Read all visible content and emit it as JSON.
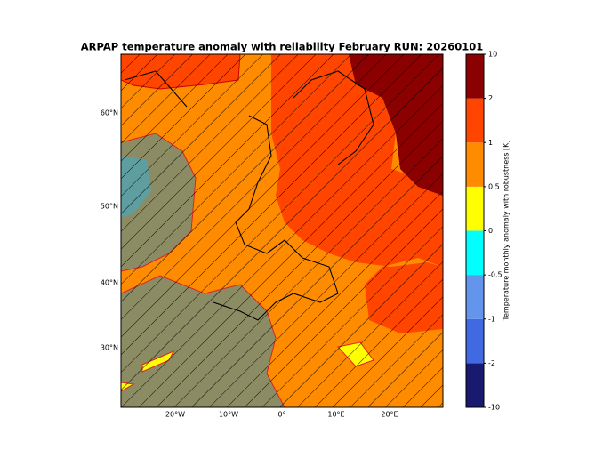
{
  "title": "ARPAP temperature anomaly with reliability February RUN: 20260101",
  "map": {
    "lat_labels": [
      "60°N",
      "50°N",
      "40°N",
      "30°N"
    ],
    "lon_labels": [
      "20°W",
      "10°W",
      "0°",
      "10°E",
      "20°E"
    ]
  },
  "colorbar": {
    "label": "Temperature monthly anomaly with robustness [K]",
    "ticks": [
      -10,
      -2,
      -1,
      -0.5,
      0,
      0.5,
      1,
      2,
      10
    ],
    "colors": [
      "#191970",
      "#4169e1",
      "#6495ed",
      "#00ffff",
      "#ffff00",
      "#ff8c00",
      "#ff4500",
      "#8b0000"
    ]
  }
}
